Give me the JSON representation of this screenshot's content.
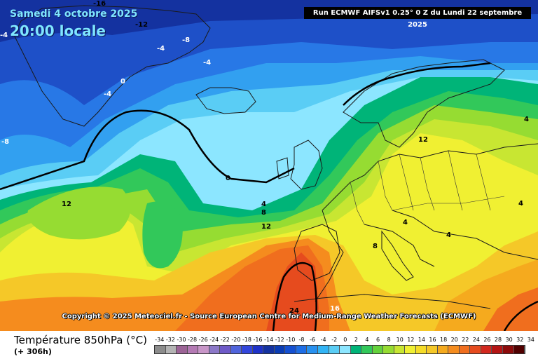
{
  "header": {
    "date": "Samedi 4 octobre 2025",
    "time": "20:00 locale",
    "run_info": "Run ECMWF AIFSv1 0.25° 0 Z du Lundi 22 septembre 2025"
  },
  "copyright": "Copyright © 2025 Meteociel.fr - Source European Centre for Medium-Range Weather Forecasts (ECMWF)",
  "legend": {
    "variable": "Température 850hPa (°C)",
    "lead_time": "(+ 306h)",
    "scale_labels": [
      "-34",
      "-32",
      "-30",
      "-28",
      "-26",
      "-24",
      "-22",
      "-20",
      "-18",
      "-16",
      "-14",
      "-12",
      "-10",
      "-8",
      "-6",
      "-4",
      "-2",
      "0",
      "2",
      "4",
      "6",
      "8",
      "10",
      "12",
      "14",
      "16",
      "18",
      "20",
      "22",
      "24",
      "26",
      "28",
      "30",
      "32",
      "34"
    ],
    "scale_colors": [
      "#8c8c8c",
      "#b4b4b4",
      "#9c6496",
      "#b47ab4",
      "#c896c8",
      "#8c78c8",
      "#6e5ac8",
      "#5064dc",
      "#3246dc",
      "#1e32c8",
      "#1432a0",
      "#0a3cb4",
      "#1450d2",
      "#1e6ee6",
      "#2891f0",
      "#32b4f5",
      "#5acdf5",
      "#8ce6ff",
      "#00b478",
      "#32c85a",
      "#64d23c",
      "#96dc32",
      "#c8e632",
      "#f0f032",
      "#f5dc28",
      "#f5c828",
      "#f5aa1e",
      "#f58c1e",
      "#f06e1e",
      "#e64b1e",
      "#d2281e",
      "#b41414",
      "#8c0a0a",
      "#500000"
    ]
  },
  "isotherm_labels": [
    "-16",
    "-12",
    "-8",
    "-4",
    "-4",
    "-4",
    "0",
    "-4",
    "12",
    "-8",
    "0",
    "4",
    "8",
    "12",
    "12",
    "4",
    "4",
    "4",
    "4",
    "8",
    "12",
    "24",
    "16"
  ],
  "map": {
    "colors": {
      "deep_blue": "#1432a0",
      "blue": "#1e50c8",
      "mid_blue": "#2878e6",
      "light_blue": "#32a0f0",
      "cyan": "#5acdf5",
      "pale_cyan": "#8ce6ff",
      "teal": "#00b478",
      "green": "#32c85a",
      "lime": "#96dc32",
      "yellow_green": "#c8e632",
      "yellow": "#f0f032",
      "orange_yellow": "#f5c828",
      "orange": "#f58c1e",
      "red_orange": "#f06e1e",
      "red": "#e64b1e"
    }
  }
}
